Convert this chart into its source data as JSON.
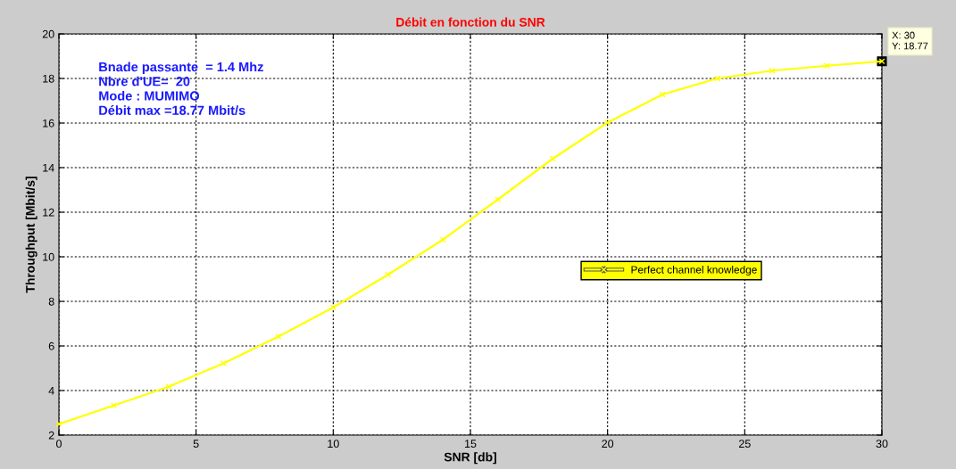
{
  "chart_data": {
    "type": "line",
    "title": "Débit en fonction du SNR",
    "xlabel": "SNR [db]",
    "ylabel": "Throughput [Mbit/s]",
    "x": [
      0,
      2,
      4,
      6,
      8,
      10,
      12,
      14,
      16,
      18,
      20,
      22,
      24,
      26,
      28,
      30
    ],
    "series": [
      {
        "name": "Perfect channel knowledge",
        "color": "#ffff00",
        "values": [
          2.5,
          3.33,
          4.17,
          5.22,
          6.42,
          7.73,
          9.2,
          10.77,
          12.57,
          14.4,
          16.02,
          17.28,
          18.0,
          18.35,
          18.57,
          18.77
        ]
      }
    ],
    "xlim": [
      0,
      30
    ],
    "xticks": [
      0,
      5,
      10,
      15,
      20,
      25,
      30
    ],
    "ylim": [
      2,
      20
    ],
    "yticks": [
      2,
      4,
      6,
      8,
      10,
      12,
      14,
      16,
      18,
      20
    ],
    "annotations": [
      "Bnade passante  = 1.4 Mhz\nNbre d'UE=  20\nMode : MUMIMO\nDébit max =18.77 Mbit/s",
      {
        "text": "X: 30\nY: 18.77",
        "x": 30,
        "y": 18.77
      }
    ],
    "grid": true,
    "legend": "center right",
    "marker": "cross",
    "line_style": "solid"
  }
}
